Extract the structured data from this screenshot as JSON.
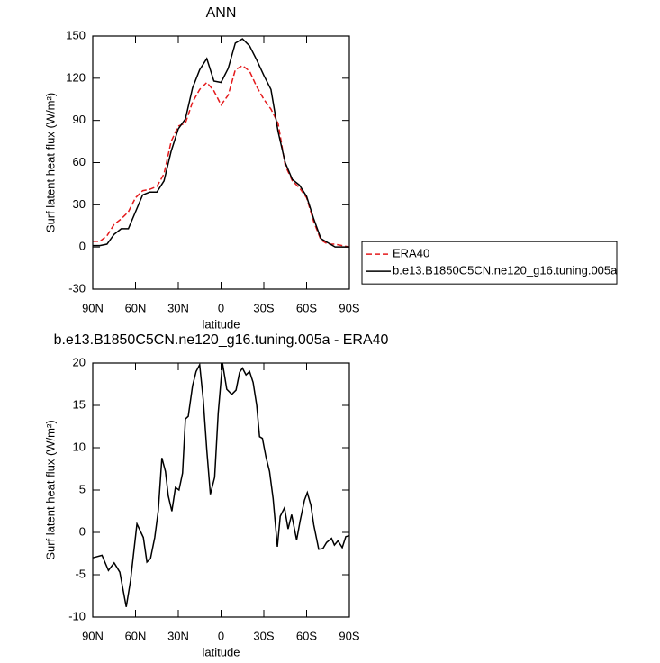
{
  "chart_data": [
    {
      "type": "line",
      "title": "ANN",
      "xlabel": "latitude",
      "ylabel": "Surf latent heat flux (W/m²)",
      "x": [
        90,
        85,
        80,
        75,
        70,
        65,
        60,
        55,
        50,
        45,
        40,
        35,
        30,
        25,
        20,
        15,
        10,
        5,
        0,
        -5,
        -10,
        -15,
        -20,
        -25,
        -30,
        -35,
        -40,
        -45,
        -50,
        -55,
        -60,
        -65,
        -70,
        -75,
        -80,
        -85,
        -90
      ],
      "series": [
        {
          "name": "ERA40",
          "color": "#e41a1c",
          "dashed": true,
          "values": [
            4,
            4,
            8,
            16,
            20,
            25,
            35,
            40,
            41,
            43,
            52,
            75,
            86,
            88,
            103,
            112,
            117,
            111,
            101,
            108,
            126,
            129,
            125,
            114,
            105,
            98,
            88,
            58,
            47,
            42,
            35,
            18,
            5,
            2,
            2,
            1,
            0
          ]
        },
        {
          "name": "b.e13.B1850C5CN.ne120_g16.tuning.005a",
          "color": "#000000",
          "dashed": false,
          "values": [
            1,
            1,
            2,
            9,
            13,
            13,
            25,
            37,
            39,
            39,
            47,
            68,
            84,
            91,
            113,
            126,
            134,
            118,
            117,
            127,
            145,
            148,
            143,
            133,
            122,
            112,
            82,
            60,
            48,
            44,
            36,
            20,
            6,
            3,
            0,
            0,
            0
          ]
        }
      ],
      "xlim": [
        90,
        -90
      ],
      "xticks": [
        {
          "value": 90,
          "label": "90N"
        },
        {
          "value": 60,
          "label": "60N"
        },
        {
          "value": 30,
          "label": "30N"
        },
        0,
        {
          "value": -30,
          "label": "30S"
        },
        {
          "value": -60,
          "label": "60S"
        },
        {
          "value": -90,
          "label": "90S"
        }
      ],
      "ylim": [
        -30,
        150
      ],
      "yticks": [
        -30,
        0,
        30,
        60,
        90,
        120,
        150
      ],
      "legend": "right"
    },
    {
      "type": "line",
      "title": "b.e13.B1850C5CN.ne120_g16.tuning.005a - ERA40",
      "xlabel": "latitude",
      "ylabel": "Surf latent heat flux (W/m²)",
      "x": [
        90,
        83.5,
        79,
        75,
        71,
        66.5,
        63.5,
        59,
        54.5,
        52,
        49.5,
        46.5,
        44,
        41.5,
        39,
        37,
        34.5,
        32,
        29.5,
        27,
        25,
        23,
        20,
        17.5,
        15,
        12.5,
        10,
        7.5,
        4.5,
        2,
        -1,
        -4,
        -7.5,
        -10.5,
        -13,
        -15,
        -17.5,
        -20,
        -22.5,
        -25,
        -27,
        -29,
        -31.5,
        -34,
        -36.5,
        -39.5,
        -41.5,
        -44.5,
        -47,
        -49.5,
        -53,
        -55.5,
        -58.5,
        -60.5,
        -63,
        -65,
        -68.5,
        -71.5,
        -74,
        -77.5,
        -79.5,
        -82,
        -85,
        -87.5,
        -90
      ],
      "series": [
        {
          "color": "#000000",
          "dashed": false,
          "values": [
            -3,
            -2.7,
            -4.5,
            -3.6,
            -4.7,
            -8.8,
            -5.7,
            1,
            -0.6,
            -3.5,
            -3.1,
            -0.6,
            2.6,
            8.8,
            7.2,
            4.3,
            2.5,
            5.3,
            5,
            7,
            13.4,
            13.7,
            17.3,
            19,
            19.8,
            15.7,
            9.7,
            4.5,
            6.5,
            14.1,
            20,
            16.9,
            16.3,
            16.8,
            18.9,
            19.4,
            18.6,
            19,
            17.7,
            15,
            11.3,
            11.1,
            8.9,
            7.2,
            4,
            -1.7,
            1.9,
            2.9,
            0.4,
            2.1,
            -0.9,
            1.4,
            3.8,
            4.7,
            3.2,
            0.9,
            -2,
            -1.9,
            -1.2,
            -0.7,
            -1.5,
            -1,
            -1.8,
            -0.5,
            -0.4
          ]
        }
      ],
      "xlim": [
        90,
        -90
      ],
      "xticks": [
        {
          "value": 90,
          "label": "90N"
        },
        {
          "value": 60,
          "label": "60N"
        },
        {
          "value": 30,
          "label": "30N"
        },
        0,
        {
          "value": -30,
          "label": "30S"
        },
        {
          "value": -60,
          "label": "60S"
        },
        {
          "value": -90,
          "label": "90S"
        }
      ],
      "ylim": [
        -10,
        20
      ],
      "yticks": [
        -10,
        -5,
        0,
        5,
        10,
        15,
        20
      ]
    }
  ]
}
